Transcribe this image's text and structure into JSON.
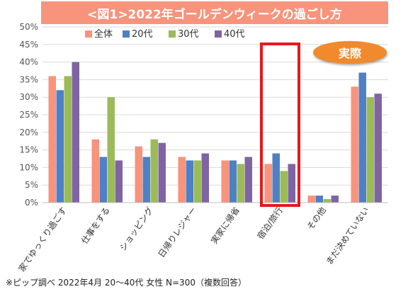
{
  "title": "<図1>2022年ゴールデンウィークの過ごし方",
  "footnote": "※ピップ調べ  2022年4月 20〜40代 女性 N=300（複数回答）",
  "callout": "実際",
  "colors": {
    "title_bg": "#f8937c",
    "callout_bg": "#f08a2c",
    "highlight_border": "#e8171b"
  },
  "chart_data": {
    "type": "bar",
    "categories": [
      "家でゆっくり過ごす",
      "仕事をする",
      "ショッピング",
      "日帰りレジャー",
      "実家に帰省",
      "宿泊/旅行",
      "その他",
      "まだ決めていない"
    ],
    "series": [
      {
        "name": "全体",
        "color": "#f8937c",
        "values": [
          36,
          18,
          16,
          13,
          12,
          11,
          2,
          33
        ]
      },
      {
        "name": "20代",
        "color": "#4f7fc4",
        "values": [
          32,
          13,
          13,
          12,
          12,
          14,
          2,
          37
        ]
      },
      {
        "name": "30代",
        "color": "#9bbb59",
        "values": [
          36,
          30,
          18,
          12,
          11,
          9,
          1,
          30
        ]
      },
      {
        "name": "40代",
        "color": "#8064a2",
        "values": [
          40,
          12,
          17,
          14,
          13,
          11,
          2,
          31
        ]
      }
    ],
    "ylim": [
      0,
      50
    ],
    "yticks": [
      "0%",
      "5%",
      "10%",
      "15%",
      "20%",
      "25%",
      "30%",
      "35%",
      "40%",
      "45%",
      "50%"
    ],
    "grid": true,
    "legend": "top",
    "highlight_category": "宿泊/旅行"
  }
}
